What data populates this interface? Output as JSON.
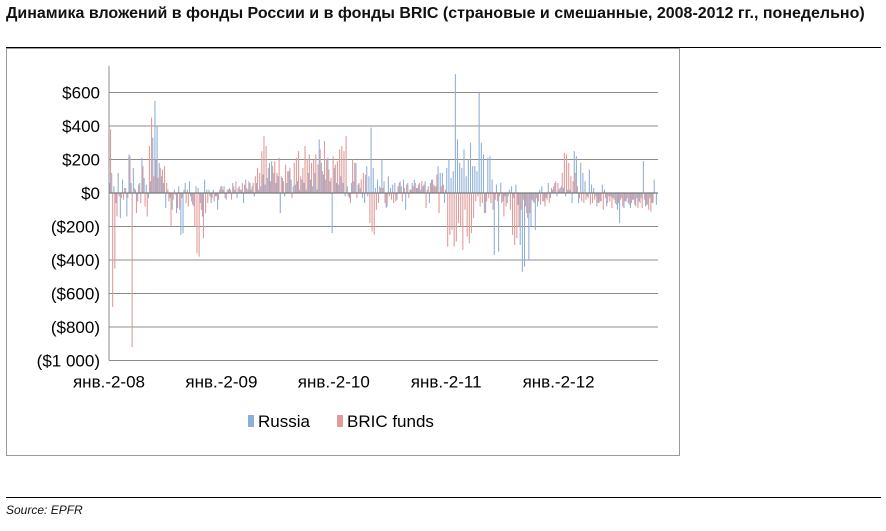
{
  "title": "Динамика вложений  в фонды России и в фонды BRIC (страновые и смешанные, 2008-2012 гг., понедельно)",
  "source": "Source: EPFR",
  "chart_data": {
    "type": "bar",
    "title": "",
    "xlabel": "",
    "ylabel": "",
    "ylim": [
      -1000,
      700
    ],
    "yticks": [
      600,
      400,
      200,
      0,
      -200,
      -400,
      -600,
      -800,
      -1000
    ],
    "ytick_labels": [
      "$600",
      "$400",
      "$200",
      "$0",
      "($200)",
      "($400)",
      "($600)",
      "($800)",
      "($1 000)"
    ],
    "x_tick_labels": [
      "янв.-2-08",
      "янв.-2-09",
      "янв.-2-10",
      "янв.-2-11",
      "янв.-2-12"
    ],
    "x_tick_weeks": [
      0,
      52,
      104,
      156,
      208
    ],
    "grid": true,
    "legend_position": "bottom",
    "colors": {
      "russia": "#8EB0D8",
      "bric": "#E09A98"
    },
    "series": [
      {
        "name": "Russia",
        "color": "#8EB0D8",
        "values": [
          60,
          120,
          40,
          -60,
          120,
          -150,
          80,
          30,
          -140,
          230,
          60,
          150,
          20,
          -50,
          60,
          210,
          90,
          50,
          -30,
          70,
          330,
          550,
          400,
          180,
          100,
          60,
          -90,
          20,
          -30,
          -100,
          20,
          -120,
          40,
          -250,
          -240,
          60,
          20,
          70,
          -50,
          -80,
          40,
          30,
          -60,
          -140,
          80,
          20,
          20,
          -60,
          20,
          -20,
          -100,
          20,
          40,
          40,
          -40,
          20,
          20,
          60,
          20,
          -30,
          40,
          20,
          -60,
          80,
          20,
          60,
          40,
          -20,
          60,
          20,
          40,
          110,
          50,
          90,
          180,
          190,
          120,
          60,
          100,
          -120,
          90,
          -20,
          60,
          130,
          80,
          40,
          50,
          70,
          20,
          80,
          60,
          20,
          120,
          80,
          40,
          120,
          20,
          320,
          180,
          110,
          80,
          210,
          70,
          -240,
          150,
          60,
          50,
          100,
          60,
          -20,
          40,
          -30,
          60,
          70,
          180,
          50,
          30,
          -30,
          -60,
          160,
          100,
          390,
          150,
          30,
          80,
          40,
          200,
          70,
          -90,
          100,
          30,
          50,
          60,
          -40,
          60,
          40,
          80,
          -100,
          60,
          20,
          60,
          80,
          30,
          50,
          20,
          40,
          70,
          20,
          -60,
          80,
          50,
          40,
          160,
          120,
          120,
          -60,
          150,
          200,
          90,
          130,
          710,
          320,
          180,
          150,
          260,
          100,
          200,
          300,
          160,
          160,
          130,
          600,
          300,
          230,
          -120,
          210,
          220,
          80,
          -370,
          50,
          -350,
          60,
          -50,
          -20,
          -60,
          20,
          40,
          -30,
          50,
          -70,
          -310,
          -470,
          -440,
          -120,
          -400,
          -200,
          -50,
          -220,
          -80,
          20,
          40,
          -50,
          -30,
          60,
          -30,
          20,
          60,
          -20,
          20,
          40,
          30,
          -20,
          20,
          20,
          -60,
          250,
          220,
          -60,
          180,
          120,
          70,
          -20,
          140,
          50,
          30,
          -20,
          -60,
          -50,
          50,
          20,
          -80,
          -20,
          -20,
          -30,
          -60,
          -100,
          -180,
          -30,
          -90,
          -50,
          -60,
          -90,
          -40,
          -70,
          -30,
          -50,
          -30,
          190,
          -80,
          -70,
          -30,
          -60,
          80,
          -70
        ]
      },
      {
        "name": "BRIC funds",
        "color": "#E09A98",
        "values": [
          380,
          -680,
          -450,
          -140,
          -20,
          -30,
          -40,
          30,
          -30,
          220,
          -920,
          30,
          -120,
          50,
          -60,
          160,
          -80,
          -140,
          280,
          450,
          100,
          200,
          90,
          150,
          140,
          160,
          60,
          -50,
          -200,
          -40,
          -10,
          -90,
          -100,
          -30,
          20,
          -60,
          -80,
          -20,
          -70,
          -200,
          -360,
          -380,
          -100,
          -270,
          -120,
          -60,
          -20,
          -30,
          -50,
          -20,
          -40,
          40,
          20,
          -30,
          20,
          30,
          -40,
          40,
          70,
          30,
          20,
          60,
          50,
          30,
          70,
          20,
          60,
          100,
          150,
          120,
          250,
          340,
          280,
          150,
          70,
          160,
          190,
          120,
          210,
          100,
          70,
          170,
          130,
          150,
          -30,
          180,
          210,
          250,
          100,
          150,
          280,
          200,
          230,
          180,
          200,
          230,
          170,
          260,
          130,
          310,
          200,
          140,
          90,
          220,
          170,
          190,
          260,
          280,
          250,
          340,
          -20,
          -60,
          200,
          180,
          -30,
          60,
          80,
          120,
          110,
          -20,
          -180,
          -230,
          -250,
          -100,
          -60,
          30,
          30,
          -60,
          -80,
          -20,
          -40,
          -60,
          -50,
          40,
          70,
          -50,
          30,
          50,
          -30,
          20,
          40,
          60,
          30,
          60,
          70,
          50,
          -90,
          40,
          60,
          80,
          40,
          110,
          -120,
          40,
          50,
          20,
          -320,
          -250,
          -220,
          -320,
          -290,
          -180,
          -200,
          -340,
          -100,
          -260,
          -300,
          -240,
          -150,
          -50,
          -20,
          -80,
          -60,
          -120,
          -50,
          -30,
          -60,
          -100,
          -40,
          -50,
          -20,
          -60,
          -140,
          -80,
          -20,
          -100,
          -250,
          -310,
          -270,
          -200,
          -100,
          -40,
          -80,
          -150,
          -120,
          -40,
          -60,
          -30,
          -50,
          -70,
          -50,
          -80,
          -40,
          -60,
          30,
          40,
          70,
          60,
          30,
          120,
          240,
          230,
          180,
          100,
          70,
          120,
          40,
          -30,
          -50,
          -60,
          -40,
          -30,
          -70,
          -60,
          -40,
          -80,
          -60,
          -50,
          -100,
          -30,
          -60,
          -50,
          -90,
          -40,
          -70,
          -60,
          -40,
          -80,
          -50,
          -30,
          -70,
          -60,
          -40,
          -80,
          -90,
          -60,
          -90,
          -40,
          -70,
          -100,
          -110,
          -60
        ]
      }
    ]
  }
}
